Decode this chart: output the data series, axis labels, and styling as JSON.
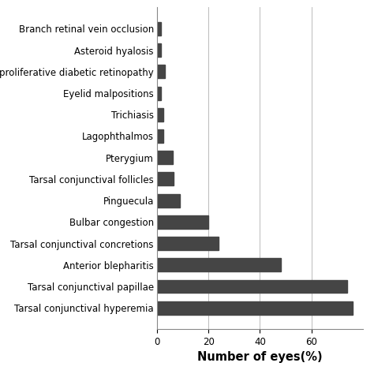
{
  "categories": [
    "Tarsal conjunctival hyperemia",
    "Tarsal conjunctival papillae",
    "Anterior blepharitis",
    "Tarsal conjunctival concretions",
    "Bulbar congestion",
    "Pinguecula",
    "Tarsal conjunctival follicles",
    "Pterygium",
    "Lagophthalmos",
    "Trichiasis",
    "Eyelid malpositions",
    "proliferative diabetic retinopathy",
    "Asteroid hyalosis",
    "Branch retinal vein occlusion"
  ],
  "values": [
    76,
    74,
    48,
    24,
    20,
    9,
    6.5,
    6,
    2.5,
    2.5,
    1.5,
    3,
    1.5,
    1.5
  ],
  "bar_color": "#454545",
  "xlabel": "Number of eyes(%)",
  "xlim": [
    0,
    80
  ],
  "xticks": [
    0,
    20,
    40,
    60
  ],
  "background_color": "#ffffff",
  "grid_color": "#bbbbbb",
  "label_fontsize": 8.5,
  "xlabel_fontsize": 10.5,
  "bar_height": 0.62
}
